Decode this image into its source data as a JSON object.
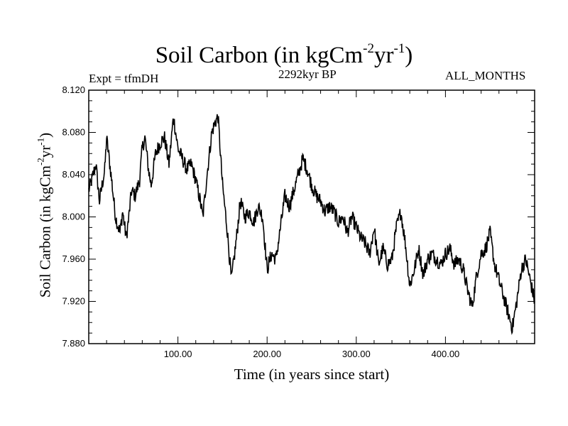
{
  "chart_data": {
    "type": "line",
    "title": "Soil Carbon (in kgCm",
    "title_sup1": "-2",
    "title_mid": "yr",
    "title_sup2": "-1",
    "title_end": ")",
    "subtitle": "2292kyr BP",
    "expt_label": "Expt = tfmDH",
    "months_label": "ALL_MONTHS",
    "xlabel": "Time (in years since start)",
    "ylabel_main": "Soil Carbon (in kgCm",
    "ylabel_sup1": "-2",
    "ylabel_mid": "yr",
    "ylabel_sup2": "-1",
    "ylabel_end": ")",
    "xlim": [
      0,
      500
    ],
    "ylim": [
      7.88,
      8.12
    ],
    "x_ticks": [
      100,
      200,
      300,
      400
    ],
    "x_tick_labels": [
      "100.00",
      "200.00",
      "300.00",
      "400.00"
    ],
    "y_ticks": [
      7.88,
      7.92,
      7.96,
      8.0,
      8.04,
      8.08,
      8.12
    ],
    "y_tick_labels": [
      "7.880",
      "7.920",
      "7.960",
      "8.000",
      "8.040",
      "8.080",
      "8.120"
    ],
    "series": [
      {
        "name": "Soil Carbon",
        "x": [
          0,
          5,
          8,
          12,
          15,
          18,
          20,
          25,
          30,
          35,
          38,
          42,
          45,
          48,
          52,
          57,
          60,
          63,
          67,
          70,
          75,
          80,
          85,
          90,
          95,
          100,
          105,
          110,
          115,
          120,
          125,
          128,
          132,
          138,
          142,
          145,
          150,
          155,
          160,
          165,
          170,
          175,
          180,
          185,
          190,
          195,
          200,
          205,
          210,
          215,
          220,
          225,
          230,
          235,
          240,
          245,
          250,
          255,
          260,
          265,
          270,
          275,
          280,
          285,
          290,
          295,
          300,
          305,
          310,
          315,
          320,
          325,
          330,
          335,
          340,
          345,
          350,
          355,
          360,
          365,
          370,
          375,
          380,
          385,
          390,
          395,
          400,
          405,
          410,
          415,
          420,
          425,
          430,
          435,
          440,
          445,
          450,
          455,
          460,
          465,
          470,
          475,
          480,
          485,
          490,
          495,
          500
        ],
        "values": [
          8.025,
          8.04,
          8.05,
          8.015,
          8.03,
          8.045,
          8.075,
          8.04,
          8.0,
          7.985,
          8.005,
          7.98,
          8.0,
          8.025,
          8.02,
          8.035,
          8.065,
          8.075,
          8.045,
          8.03,
          8.06,
          8.07,
          8.075,
          8.05,
          8.095,
          8.065,
          8.055,
          8.045,
          8.05,
          8.035,
          8.015,
          8.0,
          8.035,
          8.08,
          8.09,
          8.095,
          8.03,
          7.99,
          7.94,
          7.975,
          8.015,
          8.0,
          8.005,
          7.995,
          8.01,
          8.0,
          7.95,
          7.965,
          7.96,
          7.99,
          8.02,
          8.01,
          8.025,
          8.04,
          8.055,
          8.045,
          8.03,
          8.02,
          8.015,
          8.005,
          8.01,
          8.005,
          7.995,
          8.0,
          7.985,
          8.0,
          7.99,
          7.98,
          7.975,
          7.965,
          7.99,
          7.955,
          7.97,
          7.955,
          7.96,
          7.99,
          8.005,
          7.975,
          7.935,
          7.95,
          7.97,
          7.945,
          7.96,
          7.965,
          7.96,
          7.955,
          7.965,
          7.97,
          7.955,
          7.96,
          7.95,
          7.93,
          7.915,
          7.945,
          7.965,
          7.97,
          7.985,
          7.955,
          7.94,
          7.925,
          7.91,
          7.895,
          7.92,
          7.95,
          7.96,
          7.94,
          7.92
        ]
      }
    ]
  }
}
